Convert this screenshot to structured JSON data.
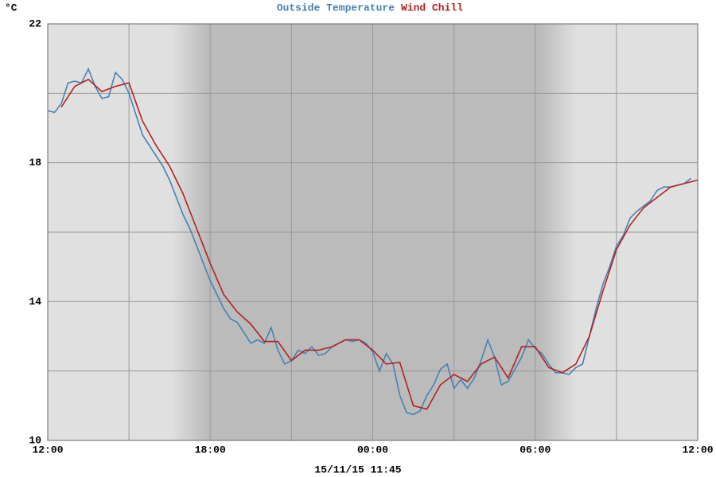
{
  "chart_data": {
    "type": "line",
    "series": [
      {
        "name": "Outside Temperature",
        "color": "#4682b4",
        "x": [
          12,
          12.25,
          12.5,
          12.75,
          13,
          13.25,
          13.5,
          13.75,
          14,
          14.25,
          14.5,
          14.75,
          15,
          15.25,
          15.5,
          15.75,
          16,
          16.25,
          16.5,
          16.75,
          17,
          17.25,
          17.5,
          17.75,
          18,
          18.25,
          18.5,
          18.75,
          19,
          19.25,
          19.5,
          19.75,
          20,
          20.25,
          20.5,
          20.75,
          21,
          21.25,
          21.5,
          21.75,
          22,
          22.25,
          22.5,
          22.75,
          23,
          23.25,
          23.5,
          23.75,
          24,
          24.25,
          24.5,
          24.75,
          25,
          25.25,
          25.5,
          25.75,
          26,
          26.25,
          26.5,
          26.75,
          27,
          27.25,
          27.5,
          27.75,
          28,
          28.25,
          28.5,
          28.75,
          29,
          29.25,
          29.5,
          29.75,
          30,
          30.25,
          30.5,
          30.75,
          31,
          31.25,
          31.5,
          31.75,
          32,
          32.25,
          32.5,
          32.75,
          33,
          33.25,
          33.5,
          33.75,
          34,
          34.25,
          34.5,
          34.75,
          35,
          35.25,
          35.5,
          35.75
        ],
        "values": [
          19.5,
          19.45,
          19.7,
          20.3,
          20.35,
          20.3,
          20.7,
          20.2,
          19.85,
          19.9,
          20.6,
          20.4,
          20.0,
          19.4,
          18.8,
          18.5,
          18.2,
          17.9,
          17.5,
          17.0,
          16.5,
          16.1,
          15.6,
          15.1,
          14.6,
          14.2,
          13.8,
          13.5,
          13.4,
          13.1,
          12.8,
          12.9,
          12.8,
          13.25,
          12.6,
          12.2,
          12.3,
          12.6,
          12.5,
          12.7,
          12.45,
          12.5,
          12.7,
          12.8,
          12.9,
          12.85,
          12.9,
          12.8,
          12.55,
          12.0,
          12.5,
          12.2,
          11.3,
          10.8,
          10.75,
          10.85,
          11.3,
          11.6,
          12.05,
          12.2,
          11.5,
          11.75,
          11.5,
          11.8,
          12.3,
          12.9,
          12.4,
          11.6,
          11.7,
          12.05,
          12.4,
          12.9,
          12.65,
          12.5,
          12.2,
          11.95,
          11.95,
          11.9,
          12.1,
          12.2,
          13.0,
          13.8,
          14.5,
          15.0,
          15.6,
          15.9,
          16.4,
          16.6,
          16.75,
          16.9,
          17.2,
          17.3,
          17.3,
          17.35,
          17.4,
          17.55
        ]
      },
      {
        "name": "Wind Chill",
        "color": "#b22222",
        "x": [
          12.5,
          13,
          13.5,
          14,
          14.5,
          15,
          15.5,
          16,
          16.5,
          17,
          17.5,
          18,
          18.5,
          19,
          19.5,
          20,
          20.5,
          21,
          21.5,
          22,
          22.5,
          23,
          23.5,
          24,
          24.5,
          25,
          25.5,
          26,
          26.5,
          27,
          27.5,
          28,
          28.5,
          29,
          29.5,
          30,
          30.5,
          31,
          31.5,
          32,
          32.5,
          33,
          33.5,
          34,
          34.5,
          35,
          35.5,
          36
        ],
        "values": [
          19.6,
          20.2,
          20.4,
          20.05,
          20.2,
          20.3,
          19.2,
          18.5,
          17.9,
          17.1,
          16.1,
          15.1,
          14.2,
          13.7,
          13.35,
          12.85,
          12.85,
          12.3,
          12.6,
          12.6,
          12.7,
          12.9,
          12.9,
          12.6,
          12.2,
          12.25,
          11.0,
          10.9,
          11.6,
          11.9,
          11.7,
          12.2,
          12.4,
          11.8,
          12.7,
          12.7,
          12.1,
          11.95,
          12.2,
          13.0,
          14.3,
          15.5,
          16.2,
          16.7,
          17.0,
          17.3,
          17.4,
          17.5
        ]
      }
    ],
    "y_unit": "°C",
    "xlim": [
      12,
      36
    ],
    "xticks": [
      {
        "value": 12,
        "label": "12:00"
      },
      {
        "value": 18,
        "label": "18:00"
      },
      {
        "value": 24,
        "label": "00:00"
      },
      {
        "value": 30,
        "label": "06:00"
      },
      {
        "value": 36,
        "label": "12:00"
      }
    ],
    "xminor": [
      15,
      21,
      27,
      33
    ],
    "ylim": [
      10,
      22
    ],
    "yticks": [
      10,
      14,
      18,
      22
    ],
    "yminor": [
      12,
      16,
      20
    ],
    "grid": true,
    "footer": "15/11/15 11:45"
  }
}
